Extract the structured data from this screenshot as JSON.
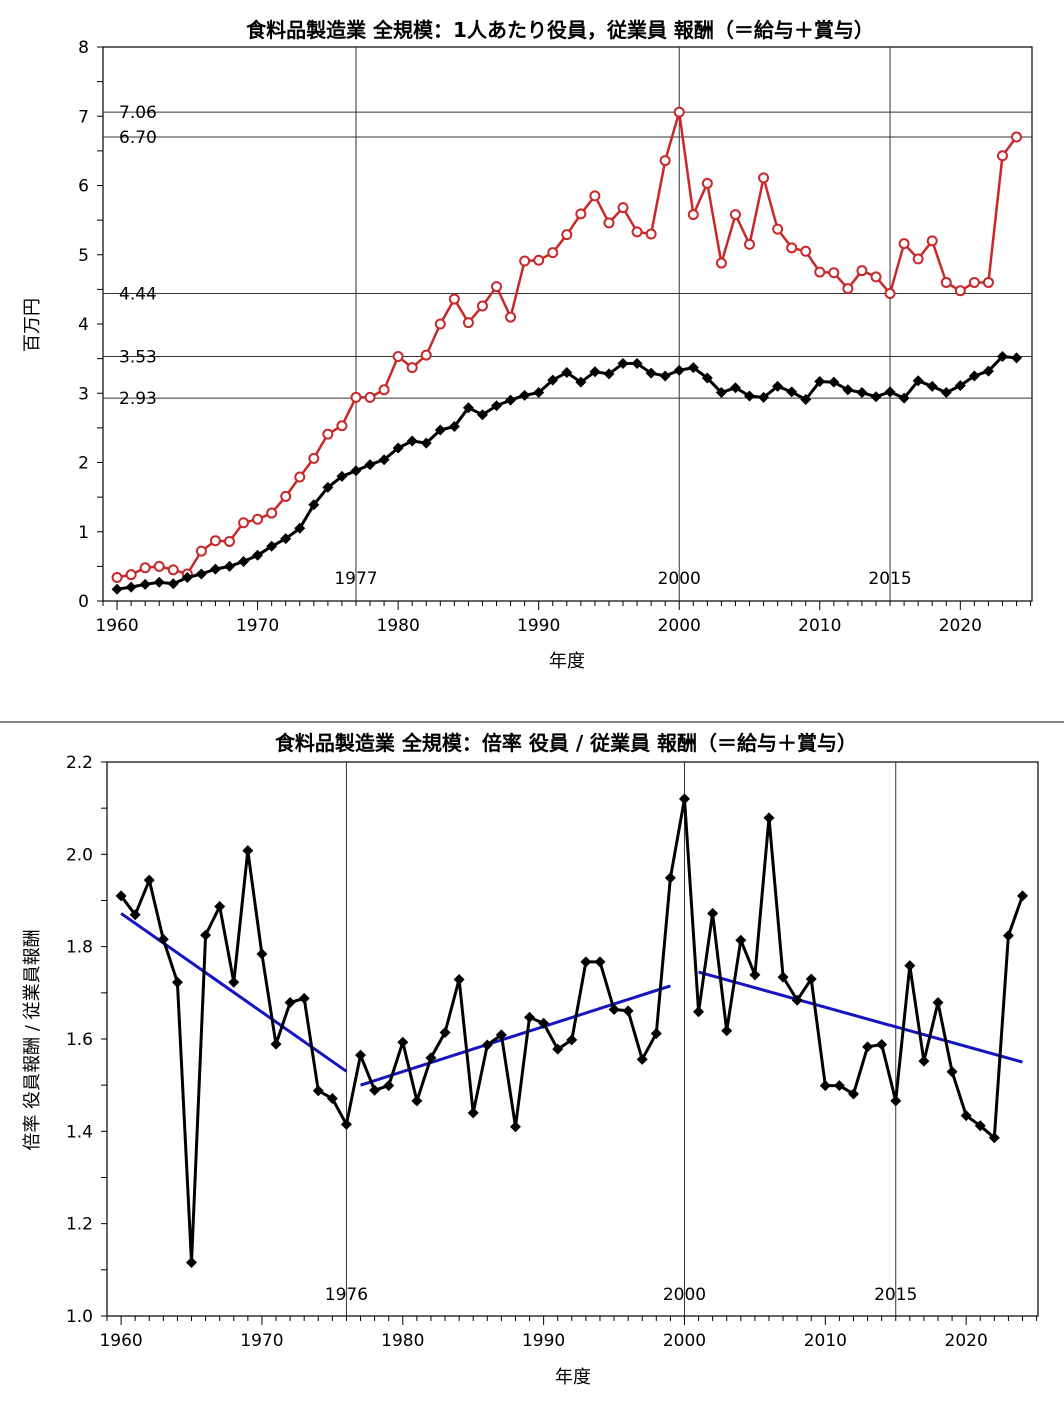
{
  "chart_data": [
    {
      "type": "line",
      "title": "食料品製造業 全規模：1人あたり役員，従業員 報酬（＝給与＋賞与）",
      "xlabel": "年度",
      "ylabel": "百万円",
      "xlim": [
        1959,
        2025.1
      ],
      "ylim": [
        0,
        8
      ],
      "xticks": [
        1960,
        1970,
        1980,
        1990,
        2000,
        2010,
        2020
      ],
      "yticks": [
        0,
        1,
        2,
        3,
        4,
        5,
        6,
        7,
        8
      ],
      "grid": false,
      "reference_hlines": [
        7.06,
        6.7,
        4.44,
        3.53,
        2.93
      ],
      "reference_hline_labels": [
        "7.06",
        "6.70",
        "4.44",
        "3.53",
        "2.93"
      ],
      "reference_vlines": [
        1977,
        2000,
        2015
      ],
      "reference_vline_labels": [
        "1977",
        "2000",
        "2015"
      ],
      "x": [
        1960,
        1961,
        1962,
        1963,
        1964,
        1965,
        1966,
        1967,
        1968,
        1969,
        1970,
        1971,
        1972,
        1973,
        1974,
        1975,
        1976,
        1977,
        1978,
        1979,
        1980,
        1981,
        1982,
        1983,
        1984,
        1985,
        1986,
        1987,
        1988,
        1989,
        1990,
        1991,
        1992,
        1993,
        1994,
        1995,
        1996,
        1997,
        1998,
        1999,
        2000,
        2001,
        2002,
        2003,
        2004,
        2005,
        2006,
        2007,
        2008,
        2009,
        2010,
        2011,
        2012,
        2013,
        2014,
        2015,
        2016,
        2017,
        2018,
        2019,
        2020,
        2021,
        2022,
        2023,
        2024
      ],
      "series": [
        {
          "color": "#c8282a",
          "marker": "open-circle",
          "values": [
            0.34,
            0.38,
            0.48,
            0.5,
            0.45,
            0.39,
            0.72,
            0.87,
            0.86,
            1.13,
            1.18,
            1.27,
            1.51,
            1.79,
            2.06,
            2.41,
            2.53,
            2.94,
            2.94,
            3.05,
            3.53,
            3.37,
            3.55,
            4.0,
            4.36,
            4.02,
            4.26,
            4.54,
            4.1,
            4.91,
            4.92,
            5.03,
            5.29,
            5.59,
            5.85,
            5.46,
            5.68,
            5.33,
            5.3,
            6.36,
            7.06,
            5.58,
            6.03,
            4.88,
            5.58,
            5.15,
            6.11,
            5.37,
            5.1,
            5.05,
            4.75,
            4.74,
            4.51,
            4.77,
            4.68,
            4.44,
            5.16,
            4.94,
            5.2,
            4.6,
            4.48,
            4.6,
            4.6,
            6.43,
            6.7
          ]
        },
        {
          "color": "#000000",
          "marker": "filled-diamond",
          "values": [
            0.17,
            0.2,
            0.24,
            0.27,
            0.25,
            0.34,
            0.39,
            0.46,
            0.5,
            0.57,
            0.66,
            0.79,
            0.9,
            1.05,
            1.39,
            1.64,
            1.8,
            1.88,
            1.97,
            2.04,
            2.21,
            2.31,
            2.28,
            2.47,
            2.52,
            2.79,
            2.69,
            2.82,
            2.9,
            2.97,
            3.01,
            3.19,
            3.3,
            3.16,
            3.31,
            3.28,
            3.43,
            3.43,
            3.29,
            3.25,
            3.33,
            3.37,
            3.22,
            3.01,
            3.08,
            2.96,
            2.94,
            3.1,
            3.02,
            2.91,
            3.17,
            3.16,
            3.05,
            3.01,
            2.95,
            3.02,
            2.93,
            3.18,
            3.1,
            3.01,
            3.11,
            3.25,
            3.32,
            3.53,
            3.51
          ]
        }
      ]
    },
    {
      "type": "line",
      "title": "食料品製造業 全規模：倍率 役員 / 従業員 報酬（＝給与＋賞与）",
      "xlabel": "年度",
      "ylabel": "倍率 役員報酬 / 従業員報酬",
      "xlim": [
        1959,
        2025.1
      ],
      "ylim": [
        1.0,
        2.2
      ],
      "xticks": [
        1960,
        1970,
        1980,
        1990,
        2000,
        2010,
        2020
      ],
      "yticks": [
        1.0,
        1.2,
        1.4,
        1.6,
        1.8,
        2.0,
        2.2
      ],
      "grid": false,
      "reference_vlines": [
        1976,
        2000,
        2015
      ],
      "reference_vline_labels": [
        "1976",
        "2000",
        "2015"
      ],
      "x": [
        1960,
        1961,
        1962,
        1963,
        1964,
        1965,
        1966,
        1967,
        1968,
        1969,
        1970,
        1971,
        1972,
        1973,
        1974,
        1975,
        1976,
        1977,
        1978,
        1979,
        1980,
        1981,
        1982,
        1983,
        1984,
        1985,
        1986,
        1987,
        1988,
        1989,
        1990,
        1991,
        1992,
        1993,
        1994,
        1995,
        1996,
        1997,
        1998,
        1999,
        2000,
        2001,
        2002,
        2003,
        2004,
        2005,
        2006,
        2007,
        2008,
        2009,
        2010,
        2011,
        2012,
        2013,
        2014,
        2015,
        2016,
        2017,
        2018,
        2019,
        2020,
        2021,
        2022,
        2023,
        2024
      ],
      "series": [
        {
          "color": "#000000",
          "marker": "filled-diamond",
          "values": [
            1.91,
            1.869,
            1.944,
            1.816,
            1.723,
            1.116,
            1.825,
            1.887,
            1.723,
            2.008,
            1.784,
            1.589,
            1.679,
            1.688,
            1.488,
            1.471,
            1.415,
            1.565,
            1.489,
            1.499,
            1.593,
            1.466,
            1.559,
            1.614,
            1.729,
            1.44,
            1.587,
            1.609,
            1.41,
            1.647,
            1.634,
            1.578,
            1.598,
            1.767,
            1.767,
            1.664,
            1.661,
            1.556,
            1.612,
            1.949,
            2.12,
            1.659,
            1.872,
            1.618,
            1.814,
            1.739,
            2.079,
            1.734,
            1.684,
            1.73,
            1.499,
            1.499,
            1.481,
            1.583,
            1.588,
            1.466,
            1.759,
            1.552,
            1.679,
            1.529,
            1.434,
            1.412,
            1.386,
            1.824,
            1.91
          ]
        }
      ],
      "trend_lines": [
        {
          "color": "#1414c0",
          "x": [
            1960,
            1976
          ],
          "y": [
            1.872,
            1.53
          ]
        },
        {
          "color": "#1414c0",
          "x": [
            1977,
            1999
          ],
          "y": [
            1.5,
            1.715
          ]
        },
        {
          "color": "#1414c0",
          "x": [
            2001,
            2024
          ],
          "y": [
            1.745,
            1.55
          ]
        }
      ]
    }
  ]
}
